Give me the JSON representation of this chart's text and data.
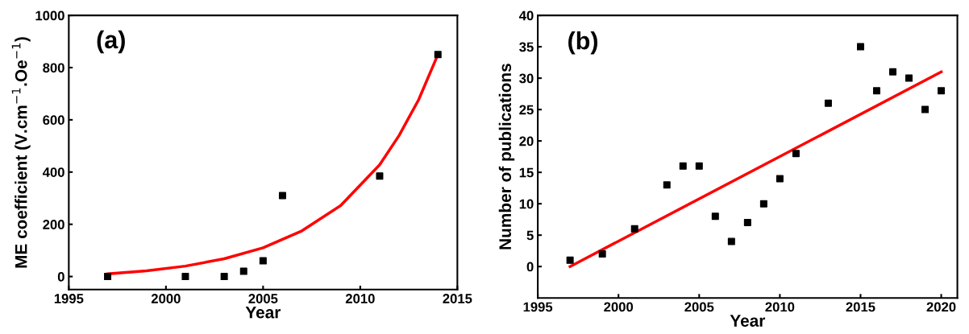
{
  "chart_data": [
    {
      "type": "scatter",
      "xlabel": "Year",
      "ylabel": "ME coefficient (V.cm$^{−1}$.Oe$^{−1}$)",
      "annotations": [
        "(a)"
      ],
      "xlim": [
        1995,
        2015
      ],
      "xticks": [
        1995,
        2000,
        2005,
        2010,
        2015
      ],
      "ylim": [
        -50,
        1000
      ],
      "yticks": [
        0,
        200,
        400,
        600,
        800,
        1000
      ],
      "grid": false,
      "legend": false,
      "series": [
        {
          "color": "#000000",
          "marker": "square",
          "x": [
            1997,
            2001,
            2003,
            2004,
            2005,
            2006,
            2011,
            2014
          ],
          "values": [
            0,
            0,
            0,
            20,
            60,
            310,
            385,
            850
          ]
        },
        {
          "type": "line",
          "color": "#ff0000",
          "line_style": "solid",
          "marker": "none",
          "x": [
            1997,
            1999,
            2001,
            2003,
            2005,
            2007,
            2009,
            2011,
            2012,
            2013,
            2014
          ],
          "values": [
            10,
            22,
            40,
            68,
            110,
            175,
            272,
            428,
            540,
            676,
            850
          ]
        }
      ]
    },
    {
      "type": "scatter",
      "xlabel": "Year",
      "ylabel": "Number of publications",
      "annotations": [
        "(b)"
      ],
      "xlim": [
        1995,
        2021
      ],
      "xticks": [
        1995,
        2000,
        2005,
        2010,
        2015,
        2020
      ],
      "ylim": [
        -5,
        40
      ],
      "yticks": [
        0,
        5,
        10,
        15,
        20,
        25,
        30,
        35,
        40
      ],
      "grid": false,
      "legend": false,
      "series": [
        {
          "color": "#000000",
          "marker": "square",
          "x": [
            1997,
            1999,
            2001,
            2003,
            2004,
            2005,
            2006,
            2007,
            2008,
            2009,
            2010,
            2011,
            2013,
            2015,
            2016,
            2017,
            2018,
            2019,
            2020
          ],
          "values": [
            1,
            2,
            6,
            13,
            16,
            16,
            8,
            4,
            7,
            10,
            14,
            18,
            26,
            35,
            28,
            31,
            30,
            25,
            28
          ]
        },
        {
          "type": "line",
          "color": "#ff0000",
          "line_style": "solid",
          "marker": "none",
          "x": [
            1997,
            2020
          ],
          "values": [
            0,
            31
          ]
        }
      ]
    }
  ]
}
